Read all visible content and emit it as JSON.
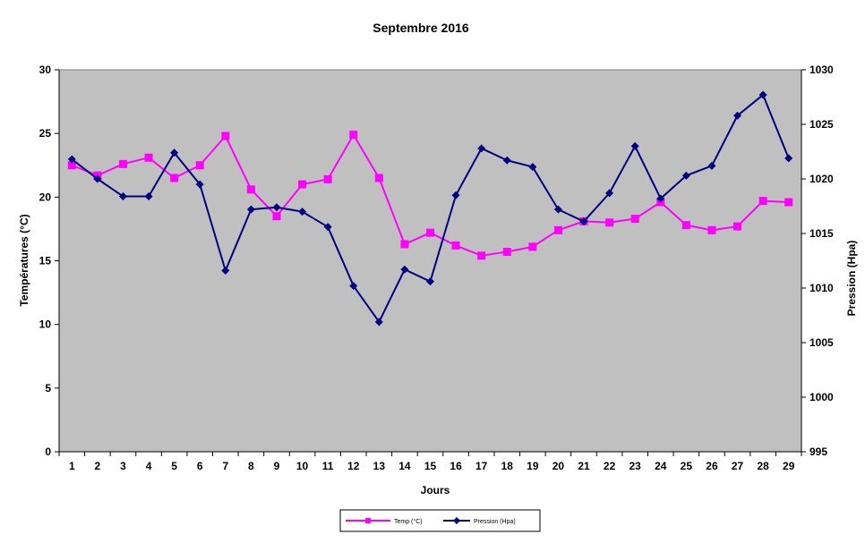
{
  "chart_data": {
    "type": "line",
    "title": "Septembre 2016",
    "xlabel": "Jours",
    "ylabel": "Températures (°C)",
    "y2label": "Pression (Hpa)",
    "categories": [
      "1",
      "2",
      "3",
      "4",
      "5",
      "6",
      "7",
      "8",
      "9",
      "10",
      "11",
      "12",
      "13",
      "14",
      "15",
      "16",
      "17",
      "18",
      "19",
      "20",
      "21",
      "22",
      "23",
      "24",
      "25",
      "26",
      "27",
      "28",
      "29"
    ],
    "ylim": [
      0,
      30
    ],
    "y2lim": [
      995,
      1030
    ],
    "yticks": [
      "0",
      "5",
      "10",
      "15",
      "20",
      "25",
      "30"
    ],
    "y2ticks": [
      "995",
      "1000",
      "1005",
      "1010",
      "1015",
      "1020",
      "1025",
      "1030"
    ],
    "plot_background": "#c0c0c0",
    "legend_position": "bottom",
    "series": [
      {
        "name": "Temp (°C)",
        "axis": "left",
        "color": "#ff00ff",
        "marker": "square",
        "values": [
          22.5,
          21.7,
          22.6,
          23.1,
          21.5,
          22.5,
          24.8,
          20.6,
          18.5,
          21.0,
          21.4,
          24.9,
          21.5,
          16.3,
          17.2,
          16.2,
          15.4,
          15.7,
          16.1,
          17.4,
          18.1,
          18.0,
          18.3,
          19.6,
          17.8,
          17.4,
          17.7,
          19.7,
          19.6
        ]
      },
      {
        "name": "Pression (Hpa)",
        "axis": "right",
        "color": "#000080",
        "marker": "diamond",
        "values": [
          1021.8,
          1020.0,
          1018.4,
          1018.4,
          1022.4,
          1019.5,
          1011.6,
          1017.2,
          1017.4,
          1017.0,
          1015.6,
          1010.2,
          1006.9,
          1011.7,
          1010.6,
          1018.5,
          1022.8,
          1021.7,
          1021.1,
          1017.2,
          1016.1,
          1018.7,
          1023.0,
          1018.2,
          1020.3,
          1021.2,
          1025.8,
          1027.7,
          1021.9
        ]
      }
    ]
  }
}
